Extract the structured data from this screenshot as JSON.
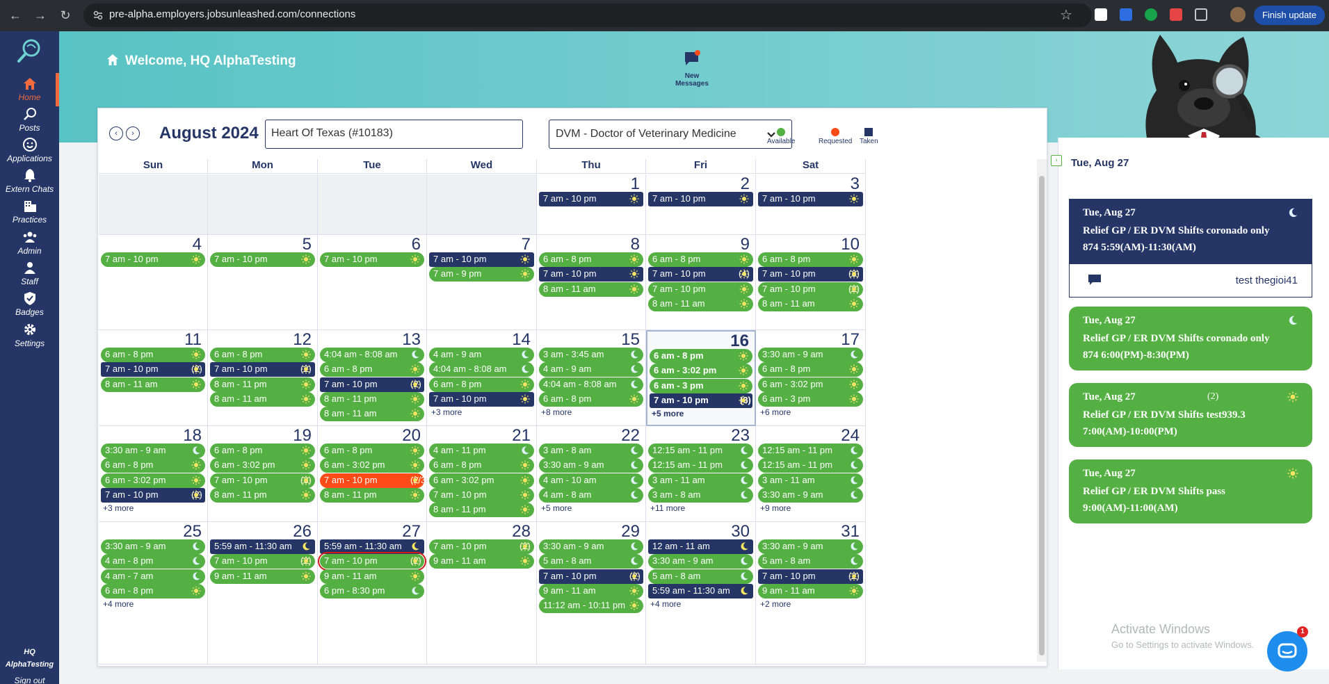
{
  "browser": {
    "url": "pre-alpha.employers.jobsunleashed.com/connections",
    "finish_update": "Finish update"
  },
  "sidebar": {
    "items": [
      {
        "label": "Home",
        "icon": "home-icon"
      },
      {
        "label": "Posts",
        "icon": "posts-icon"
      },
      {
        "label": "Applications",
        "icon": "smiley-icon"
      },
      {
        "label": "Extern Chats",
        "icon": "bell-icon"
      },
      {
        "label": "Practices",
        "icon": "building-icon"
      },
      {
        "label": "Admin",
        "icon": "admin-users-icon"
      },
      {
        "label": "Staff",
        "icon": "staff-icon"
      },
      {
        "label": "Badges",
        "icon": "badge-shield-icon"
      },
      {
        "label": "Settings",
        "icon": "gear-icon"
      }
    ],
    "user_line1": "HQ",
    "user_line2": "AlphaTesting",
    "sign_out": "Sign out"
  },
  "header": {
    "welcome": "Welcome, HQ AlphaTesting",
    "messages_label": "New Messages"
  },
  "calendar": {
    "month": "August 2024",
    "practice": "Heart Of Texas (#10183)",
    "role": "DVM - Doctor of Veterinary Medicine",
    "legend": [
      {
        "label": "Available",
        "color": "#55b043"
      },
      {
        "label": "Requested",
        "color": "#ff4b17"
      },
      {
        "label": "Taken",
        "color": "#243566"
      }
    ],
    "days_of_week": [
      "Sun",
      "Mon",
      "Tue",
      "Wed",
      "Thu",
      "Fri",
      "Sat"
    ],
    "weeks": [
      [
        {
          "day": "",
          "shifts": []
        },
        {
          "day": "",
          "shifts": []
        },
        {
          "day": "",
          "shifts": []
        },
        {
          "day": "",
          "shifts": []
        },
        {
          "day": "1",
          "shifts": [
            {
              "t": "7 am - 10 pm",
              "s": "taken",
              "i": "sun"
            }
          ]
        },
        {
          "day": "2",
          "shifts": [
            {
              "t": "7 am - 10 pm",
              "s": "taken",
              "i": "sun"
            }
          ]
        },
        {
          "day": "3",
          "shifts": [
            {
              "t": "7 am - 10 pm",
              "s": "taken",
              "i": "sun"
            }
          ]
        }
      ],
      [
        {
          "day": "4",
          "shifts": [
            {
              "t": "7 am - 10 pm",
              "s": "avail",
              "i": "sun"
            }
          ]
        },
        {
          "day": "5",
          "shifts": [
            {
              "t": "7 am - 10 pm",
              "s": "avail",
              "i": "sun"
            }
          ]
        },
        {
          "day": "6",
          "shifts": [
            {
              "t": "7 am - 10 pm",
              "s": "avail",
              "i": "sun"
            }
          ]
        },
        {
          "day": "7",
          "shifts": [
            {
              "t": "7 am - 10 pm",
              "s": "taken",
              "i": "sun"
            },
            {
              "t": "7 am - 9 pm",
              "s": "avail",
              "i": "sun"
            }
          ]
        },
        {
          "day": "8",
          "shifts": [
            {
              "t": "6 am - 8 pm",
              "s": "avail",
              "i": "sun"
            },
            {
              "t": "7 am - 10 pm",
              "s": "taken",
              "i": "sun"
            },
            {
              "t": "8 am - 11 am",
              "s": "avail",
              "i": "sun"
            }
          ]
        },
        {
          "day": "9",
          "shifts": [
            {
              "t": "6 am - 8 pm",
              "s": "avail",
              "i": "sun"
            },
            {
              "t": "7 am - 10 pm",
              "c": "(4)",
              "s": "taken",
              "i": "sun"
            },
            {
              "t": "7 am - 10 pm",
              "s": "avail",
              "i": "sun"
            },
            {
              "t": "8 am - 11 am",
              "s": "avail",
              "i": "sun"
            }
          ]
        },
        {
          "day": "10",
          "shifts": [
            {
              "t": "6 am - 8 pm",
              "s": "avail",
              "i": "sun"
            },
            {
              "t": "7 am - 10 pm",
              "c": "(3)",
              "s": "taken",
              "i": "sun"
            },
            {
              "t": "7 am - 10 pm",
              "c": "(2)",
              "s": "avail",
              "i": "sun"
            },
            {
              "t": "8 am - 11 am",
              "s": "avail",
              "i": "sun"
            }
          ]
        }
      ],
      [
        {
          "day": "11",
          "shifts": [
            {
              "t": "6 am - 8 pm",
              "s": "avail",
              "i": "sun"
            },
            {
              "t": "7 am - 10 pm",
              "c": "(2)",
              "s": "taken",
              "i": "sun"
            },
            {
              "t": "8 am - 11 am",
              "s": "avail",
              "i": "sun"
            }
          ]
        },
        {
          "day": "12",
          "shifts": [
            {
              "t": "6 am - 8 pm",
              "s": "avail",
              "i": "sun"
            },
            {
              "t": "7 am - 10 pm",
              "c": "(2)",
              "s": "taken",
              "i": "sun"
            },
            {
              "t": "8 am - 11 pm",
              "s": "avail",
              "i": "sun"
            },
            {
              "t": "8 am - 11 am",
              "s": "avail",
              "i": "sun"
            }
          ]
        },
        {
          "day": "13",
          "shifts": [
            {
              "t": "4:04 am - 8:08 am",
              "s": "avail",
              "i": "moon"
            },
            {
              "t": "6 am - 8 pm",
              "s": "avail",
              "i": "sun"
            },
            {
              "t": "7 am - 10 pm",
              "c": "(2)",
              "s": "taken",
              "i": "sun"
            },
            {
              "t": "8 am - 11 pm",
              "s": "avail",
              "i": "sun"
            },
            {
              "t": "8 am - 11 am",
              "s": "avail",
              "i": "sun"
            }
          ]
        },
        {
          "day": "14",
          "shifts": [
            {
              "t": "4 am - 9 am",
              "s": "avail",
              "i": "moon"
            },
            {
              "t": "4:04 am - 8:08 am",
              "s": "avail",
              "i": "moon"
            },
            {
              "t": "6 am - 8 pm",
              "s": "avail",
              "i": "sun"
            },
            {
              "t": "7 am - 10 pm",
              "s": "taken",
              "i": "sun"
            }
          ],
          "more": "+3 more"
        },
        {
          "day": "15",
          "shifts": [
            {
              "t": "3 am - 3:45 am",
              "s": "avail",
              "i": "moon"
            },
            {
              "t": "4 am - 9 am",
              "s": "avail",
              "i": "moon"
            },
            {
              "t": "4:04 am - 8:08 am",
              "s": "avail",
              "i": "moon"
            },
            {
              "t": "6 am - 8 pm",
              "s": "avail",
              "i": "sun"
            }
          ],
          "more": "+8 more"
        },
        {
          "day": "16",
          "today": true,
          "shifts": [
            {
              "t": "6 am - 8 pm",
              "s": "avail",
              "i": "sun"
            },
            {
              "t": "6 am - 3:02 pm",
              "s": "avail",
              "i": "sun"
            },
            {
              "t": "6 am - 3 pm",
              "s": "avail",
              "i": "sun"
            },
            {
              "t": "7 am - 10 pm",
              "c": "(3)",
              "s": "taken",
              "i": "sun"
            }
          ],
          "more": "+5 more"
        },
        {
          "day": "17",
          "shifts": [
            {
              "t": "3:30 am - 9 am",
              "s": "avail",
              "i": "moon"
            },
            {
              "t": "6 am - 8 pm",
              "s": "avail",
              "i": "sun"
            },
            {
              "t": "6 am - 3:02 pm",
              "s": "avail",
              "i": "sun"
            },
            {
              "t": "6 am - 3 pm",
              "s": "avail",
              "i": "sun"
            }
          ],
          "more": "+6 more"
        }
      ],
      [
        {
          "day": "18",
          "shifts": [
            {
              "t": "3:30 am - 9 am",
              "s": "avail",
              "i": "moon"
            },
            {
              "t": "6 am - 8 pm",
              "s": "avail",
              "i": "sun"
            },
            {
              "t": "6 am - 3:02 pm",
              "s": "avail",
              "i": "sun"
            },
            {
              "t": "7 am - 10 pm",
              "c": "(2)",
              "s": "taken",
              "i": "sun"
            }
          ],
          "more": "+3 more"
        },
        {
          "day": "19",
          "shifts": [
            {
              "t": "6 am - 8 pm",
              "s": "avail",
              "i": "sun"
            },
            {
              "t": "6 am - 3:02 pm",
              "s": "avail",
              "i": "sun"
            },
            {
              "t": "7 am - 10 pm",
              "c": "(3)",
              "s": "avail",
              "i": "sun"
            },
            {
              "t": "8 am - 11 pm",
              "s": "avail",
              "i": "sun"
            }
          ]
        },
        {
          "day": "20",
          "shifts": [
            {
              "t": "6 am - 8 pm",
              "s": "avail",
              "i": "sun"
            },
            {
              "t": "6 am - 3:02 pm",
              "s": "avail",
              "i": "sun"
            },
            {
              "t": "7 am - 10 pm",
              "c": "(2/3)",
              "s": "req",
              "i": "sun"
            },
            {
              "t": "8 am - 11 pm",
              "s": "avail",
              "i": "sun"
            }
          ]
        },
        {
          "day": "21",
          "shifts": [
            {
              "t": "4 am - 11 pm",
              "s": "avail",
              "i": "moon"
            },
            {
              "t": "6 am - 8 pm",
              "s": "avail",
              "i": "sun"
            },
            {
              "t": "6 am - 3:02 pm",
              "s": "avail",
              "i": "sun"
            },
            {
              "t": "7 am - 10 pm",
              "s": "avail",
              "i": "sun"
            },
            {
              "t": "8 am - 11 pm",
              "s": "avail",
              "i": "sun"
            }
          ]
        },
        {
          "day": "22",
          "shifts": [
            {
              "t": "3 am - 8 am",
              "s": "avail",
              "i": "moon"
            },
            {
              "t": "3:30 am - 9 am",
              "s": "avail",
              "i": "moon"
            },
            {
              "t": "4 am - 10 am",
              "s": "avail",
              "i": "moon"
            },
            {
              "t": "4 am - 8 am",
              "s": "avail",
              "i": "moon"
            }
          ],
          "more": "+5 more"
        },
        {
          "day": "23",
          "shifts": [
            {
              "t": "12:15 am - 11 pm",
              "s": "avail",
              "i": "moon"
            },
            {
              "t": "12:15 am - 11 pm",
              "s": "avail",
              "i": "moon"
            },
            {
              "t": "3 am - 11 am",
              "s": "avail",
              "i": "moon"
            },
            {
              "t": "3 am - 8 am",
              "s": "avail",
              "i": "moon"
            }
          ],
          "more": "+11 more"
        },
        {
          "day": "24",
          "shifts": [
            {
              "t": "12:15 am - 11 pm",
              "s": "avail",
              "i": "moon"
            },
            {
              "t": "12:15 am - 11 pm",
              "s": "avail",
              "i": "moon"
            },
            {
              "t": "3 am - 11 am",
              "s": "avail",
              "i": "moon"
            },
            {
              "t": "3:30 am - 9 am",
              "s": "avail",
              "i": "moon"
            }
          ],
          "more": "+9 more"
        }
      ],
      [
        {
          "day": "25",
          "shifts": [
            {
              "t": "3:30 am - 9 am",
              "s": "avail",
              "i": "moon"
            },
            {
              "t": "4 am - 8 pm",
              "s": "avail",
              "i": "moon"
            },
            {
              "t": "4 am - 7 am",
              "s": "avail",
              "i": "moon"
            },
            {
              "t": "6 am - 8 pm",
              "s": "avail",
              "i": "sun"
            }
          ],
          "more": "+4 more"
        },
        {
          "day": "26",
          "shifts": [
            {
              "t": "5:59 am - 11:30 am",
              "s": "taken",
              "i": "moon"
            },
            {
              "t": "7 am - 10 pm",
              "c": "(2)",
              "s": "avail",
              "i": "sun"
            },
            {
              "t": "9 am - 11 am",
              "s": "avail",
              "i": "sun"
            }
          ]
        },
        {
          "day": "27",
          "shifts": [
            {
              "t": "5:59 am - 11:30 am",
              "s": "taken",
              "i": "moon"
            },
            {
              "t": "7 am - 10 pm",
              "c": "(2)",
              "s": "avail",
              "i": "sun",
              "sel": true
            },
            {
              "t": "9 am - 11 am",
              "s": "avail",
              "i": "sun"
            },
            {
              "t": "6 pm - 8:30 pm",
              "s": "avail",
              "i": "moon"
            }
          ]
        },
        {
          "day": "28",
          "shifts": [
            {
              "t": "7 am - 10 pm",
              "c": "(2)",
              "s": "avail",
              "i": "sun"
            },
            {
              "t": "9 am - 11 am",
              "s": "avail",
              "i": "sun"
            }
          ]
        },
        {
          "day": "29",
          "shifts": [
            {
              "t": "3:30 am - 9 am",
              "s": "avail",
              "i": "moon"
            },
            {
              "t": "5 am - 8 am",
              "s": "avail",
              "i": "moon"
            },
            {
              "t": "7 am - 10 pm",
              "c": "(2)",
              "s": "taken",
              "i": "sun"
            },
            {
              "t": "9 am - 11 am",
              "s": "avail",
              "i": "sun"
            },
            {
              "t": "11:12 am - 10:11 pm",
              "s": "avail",
              "i": "sun"
            }
          ]
        },
        {
          "day": "30",
          "shifts": [
            {
              "t": "12 am - 11 am",
              "s": "taken",
              "i": "moon"
            },
            {
              "t": "3:30 am - 9 am",
              "s": "avail",
              "i": "moon"
            },
            {
              "t": "5 am - 8 am",
              "s": "avail",
              "i": "moon"
            },
            {
              "t": "5:59 am - 11:30 am",
              "s": "taken",
              "i": "moon"
            }
          ],
          "more": "+4 more"
        },
        {
          "day": "31",
          "shifts": [
            {
              "t": "3:30 am - 9 am",
              "s": "avail",
              "i": "moon"
            },
            {
              "t": "5 am - 8 am",
              "s": "avail",
              "i": "moon"
            },
            {
              "t": "7 am - 10 pm",
              "c": "(2)",
              "s": "taken",
              "i": "sun"
            },
            {
              "t": "9 am - 11 am",
              "s": "avail",
              "i": "sun"
            }
          ],
          "more": "+2 more"
        }
      ]
    ]
  },
  "panel": {
    "date": "Tue, Aug 27",
    "cards": [
      {
        "date": "Tue, Aug 27",
        "title": "Relief GP / ER DVM Shifts coronado only 874 5:59(AM)-11:30(AM)",
        "status": "taken",
        "icon": "moon",
        "count": "",
        "user": "test thegioi41"
      },
      {
        "date": "Tue, Aug 27",
        "title": "Relief GP / ER DVM Shifts coronado only 874 6:00(PM)-8:30(PM)",
        "status": "avail",
        "icon": "moon",
        "count": ""
      },
      {
        "date": "Tue, Aug 27",
        "title": "Relief GP / ER DVM Shifts test939.3 7:00(AM)-10:00(PM)",
        "status": "avail",
        "icon": "sun",
        "count": "(2)"
      },
      {
        "date": "Tue, Aug 27",
        "title": "Relief GP / ER DVM Shifts pass 9:00(AM)-11:00(AM)",
        "status": "avail",
        "icon": "sun",
        "count": ""
      }
    ]
  },
  "overlay": {
    "activate_title": "Activate Windows",
    "activate_sub": "Go to Settings to activate Windows.",
    "chat_badge": "1"
  }
}
